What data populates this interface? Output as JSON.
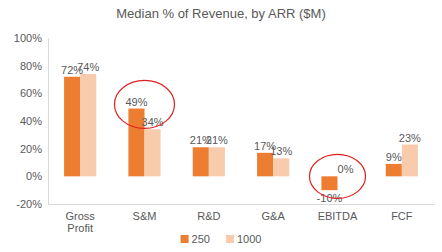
{
  "chart_data": {
    "type": "bar",
    "title": "Median % of Revenue, by ARR ($M)",
    "categories": [
      "Gross Profit",
      "S&M",
      "R&D",
      "G&A",
      "EBITDA",
      "FCF"
    ],
    "series": [
      {
        "name": "250",
        "color": "#ed7d31",
        "values": [
          72,
          49,
          21,
          17,
          -10,
          9
        ],
        "value_labels": [
          "72%",
          "49%",
          "21%",
          "17%",
          "-10%",
          "9%"
        ]
      },
      {
        "name": "1000",
        "color": "#f8cbad",
        "values": [
          74,
          34,
          21,
          13,
          0,
          23
        ],
        "value_labels": [
          "74%",
          "34%",
          "21%",
          "13%",
          "0%",
          "23%"
        ]
      }
    ],
    "ylim": [
      -20,
      100
    ],
    "yticks": [
      {
        "value": -20,
        "label": "-20%"
      },
      {
        "value": 0,
        "label": "0%"
      },
      {
        "value": 20,
        "label": "20%"
      },
      {
        "value": 40,
        "label": "40%"
      },
      {
        "value": 60,
        "label": "60%"
      },
      {
        "value": 80,
        "label": "80%"
      },
      {
        "value": 100,
        "label": "100%"
      }
    ],
    "grid": false,
    "legend": "bottom",
    "data_labels": true
  }
}
